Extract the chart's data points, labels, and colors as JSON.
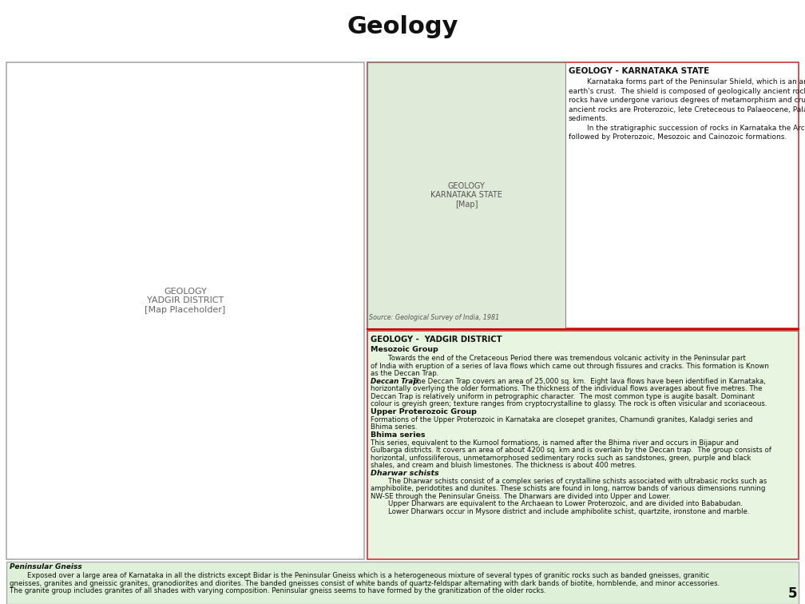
{
  "title": "Geology",
  "title_bg_color": "#b3ecf5",
  "title_font_size": 22,
  "page_bg_color": "#ffffff",
  "page_number": "5",
  "karnataka_box_bg": "#e8f5e0",
  "karnataka_title": "GEOLOGY - KARNATAKA STATE",
  "karnataka_line1": "        Karnataka forms part of the Peninsular Shield, which is an ancient stable block of the",
  "karnataka_line2": "earth's crust.  The shield is composed of geologically ancient rocks of diverse origin. These",
  "karnataka_line3": "rocks have undergone various degrees of metamorphism and crushing.  Overlying these",
  "karnataka_line4": "ancient rocks are Proterozoic, lete Creteceous to Palaeocene, Palaeocene to Recent, and Recent",
  "karnataka_line5": "sediments.",
  "karnataka_line6": "        In the stratigraphic succession of rocks in Karnataka the Archaean group is the oldest,",
  "karnataka_line7": "followed by Proterozoic, Mesozoic and Cainozoic formations.",
  "yadgir_title": "GEOLOGY -  YADGIR DISTRICT",
  "mesozoic_group": "Mesozoic Group",
  "mesozoic_para": "        Towards the end of the Cretaceous Period there was tremendous volcanic activity in the Peninsular part\nof India with eruption of a series of lava flows which came out through fissures and cracks. This formation is Known\nas the Deccan Trap.",
  "deccan_italic": "Deccan Trap:",
  "deccan_para": " The Deccan Trap covers an area of 25,000 sq. km.  Eight lava flows have been identified in Karnataka,\nhorizontally overlying the older formations. The thickness of the individual flows averages about five metres. The\nDeccan Trap is relatively uniform in petrographic character.  The most common type is augite basalt. Dominant\ncolour is greyish green; texture ranges from cryptocrystalline to glassy. The rock is often visicular and scoriaceous.",
  "upper_proto_bold": "Upper Proterozoic Group",
  "upper_proto_para": "Formations of the Upper Proterozoic in Karnataka are closepet granites, Chamundi granites, Kaladgi series and\nBhima series.",
  "bhima_bold": "Bhima series",
  "bhima_para": "This series, equivalent to the Kurnool formations, is named after the Bhima river and occurs in Bijapur and\nGulbarga districts. It covers an area of about 4200 sq. km and is overlain by the Deccan trap.  The group consists of\nhorizontal, unfossiliferous, unmetamorphosed sedimentary rocks such as sandstones, green, purple and black\nshales, and cream and bluish limestones. The thickness is about 400 metres.",
  "dharwar_italic": "Dharwar schists",
  "dharwar_para": "        The Dharwar schists consist of a complex series of crystalline schists associated with ultrabasic rocks such as\namphibolite, peridotites and dunites. These schists are found in long, narrow bands of various dimensions running\nNW-SE through the Peninsular Gneiss. The Dharwars are divided into Upper and Lower.\n        Upper Dharwars are equivalent to the Archaean to Lower Proterozoic, and are divided into Bababudan.\n        Lower Dharwars occur in Mysore district and include amphibolite schist, quartzite, ironstone and marble.",
  "bottom_italic": "Peninsular Gneiss",
  "bottom_line1": "        Exposed over a large area of Karnataka in all the districts except Bidar is the Peninsular Gneiss which is a heterogeneous mixture of several types of granitic rocks such as banded gneisses, granitic",
  "bottom_line2": "gneisses, granites and gneissic granites, granodiorites and diorites. The banded gneisses consist of white bands of quartz-feldspar alternating with dark bands of biotite, hornblende, and minor accessories.",
  "bottom_line3": "The granite group includes granites of all shades with varying composition. Peninsular gneiss seems to have formed by the granitization of the older rocks.",
  "source_text": "Source: Geological Survey of India, 1981",
  "outer_border_color": "#cc0000",
  "divider_color": "#cc0000",
  "left_panel_bg": "#ffffff",
  "right_top_bg": "#ffffff",
  "right_bottom_bg": "#e8f5e0",
  "bottom_panel_bg": "#dff0d8"
}
